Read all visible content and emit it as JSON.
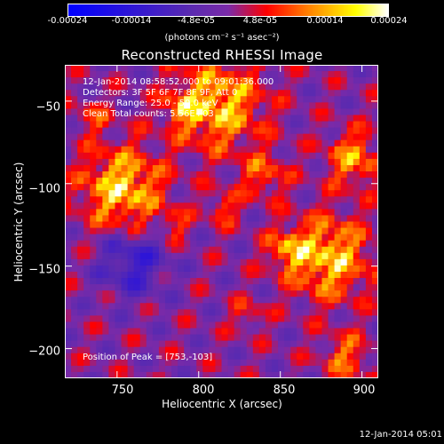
{
  "colorbar": {
    "ticks": [
      "-0.00024",
      "-0.00014",
      "-4.8e-05",
      "4.8e-05",
      "0.00014",
      "0.00024"
    ],
    "units": "(photons cm⁻² s⁻¹ asec⁻²)"
  },
  "title": "Reconstructed RHESSI Image",
  "info": {
    "time": "12-Jan-2014 08:58:52.000 to 09:01:36.000",
    "detectors": "Detectors: 3F 5F 6F 7F 8F 9F, Att 0",
    "energy": "Energy Range: 25.0 - 50.0 keV",
    "clean": "Clean    Total counts: 5.56E+03",
    "peak": "Position of Peak = [753,-103]"
  },
  "axes": {
    "xlabel": "Heliocentric X (arcsec)",
    "ylabel": "Heliocentric Y (arcsec)",
    "xticks": [
      "750",
      "800",
      "850",
      "900"
    ],
    "yticks": [
      "−50",
      "−100",
      "−150",
      "−200"
    ]
  },
  "timestamp": "12-Jan-2014 05:01",
  "chart_data": {
    "type": "heatmap",
    "title": "Reconstructed RHESSI Image",
    "xlabel": "Heliocentric X (arcsec)",
    "ylabel": "Heliocentric Y (arcsec)",
    "xlim": [
      718,
      910
    ],
    "ylim": [
      -218,
      -28
    ],
    "colorbar_range": [
      -0.00024,
      0.00024
    ],
    "peak": [
      753,
      -103
    ],
    "colormap_stops": [
      "#0000ff",
      "#5a2ab0",
      "#7a2aa8",
      "#ff0000",
      "#ff8000",
      "#ffff00",
      "#ffffff"
    ]
  }
}
